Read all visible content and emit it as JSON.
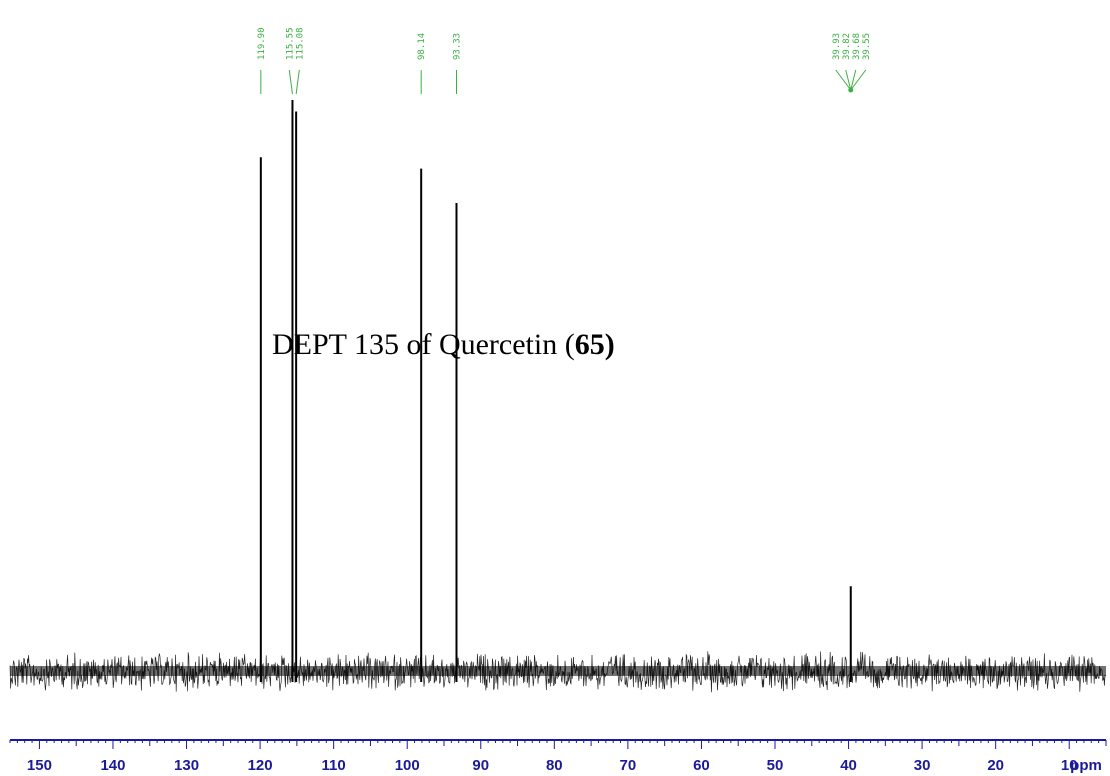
{
  "chart_data": {
    "type": "line",
    "title_prefix": "DEPT 135 of Quercetin (",
    "title_compound": "65",
    "title_suffix": ")",
    "x_unit_label": "ppm",
    "xlim": [
      154,
      5
    ],
    "x_ticks": [
      150,
      140,
      130,
      120,
      110,
      100,
      90,
      80,
      70,
      60,
      50,
      40,
      30,
      20,
      10
    ],
    "axis_color": "#1a1aa0",
    "tick_label_color": "#1a1a9a",
    "spectrum_color": "#000000",
    "peak_label_color": "#3cb043",
    "peaks": [
      {
        "ppm": 119.9,
        "relative_height": 0.9
      },
      {
        "ppm": 115.6,
        "relative_height": 1.0
      },
      {
        "ppm": 115.1,
        "relative_height": 0.98
      },
      {
        "ppm": 98.1,
        "relative_height": 0.88
      },
      {
        "ppm": 93.3,
        "relative_height": 0.82
      },
      {
        "ppm": 39.7,
        "relative_height": 0.15
      }
    ],
    "peak_labels": [
      {
        "text": "119.90",
        "ppm": 119.9,
        "group": "single"
      },
      {
        "text": "115.55",
        "ppm": 115.6,
        "group": "pair"
      },
      {
        "text": "115.08",
        "ppm": 115.1,
        "group": "pair"
      },
      {
        "text": "98.14",
        "ppm": 98.1,
        "group": "single"
      },
      {
        "text": "93.33",
        "ppm": 93.3,
        "group": "single"
      },
      {
        "text": "39.93",
        "ppm": 39.7,
        "group": "solvent"
      },
      {
        "text": "39.82",
        "ppm": 39.7,
        "group": "solvent"
      },
      {
        "text": "39.68",
        "ppm": 39.7,
        "group": "solvent"
      },
      {
        "text": "39.55",
        "ppm": 39.7,
        "group": "solvent"
      }
    ]
  }
}
